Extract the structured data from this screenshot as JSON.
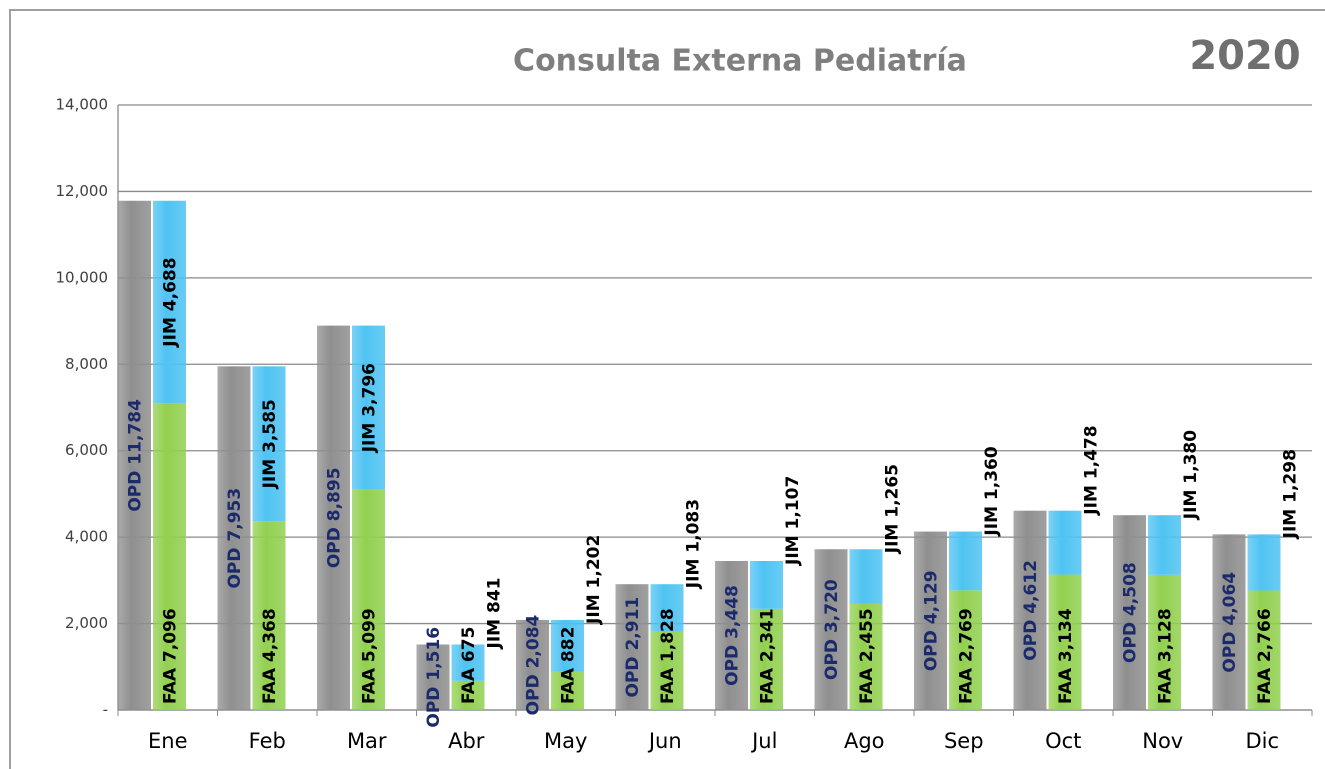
{
  "chart_data": {
    "type": "bar",
    "title": "Consulta Externa Pediatría",
    "subtitle": "2020",
    "categories": [
      "Ene",
      "Feb",
      "Mar",
      "Abr",
      "May",
      "Jun",
      "Jul",
      "Ago",
      "Sep",
      "Oct",
      "Nov",
      "Dic"
    ],
    "series": [
      {
        "name": "OPD",
        "color": "#8f8f8f",
        "label_color": "#1b2a6b",
        "values": [
          11784,
          7953,
          8895,
          1516,
          2084,
          2911,
          3448,
          3720,
          4129,
          4612,
          4508,
          4064
        ],
        "value_labels": [
          "11,784",
          "7,953",
          "8,895",
          "1,516",
          "2,084",
          "2,911",
          "3,448",
          "3,720",
          "4,129",
          "4,612",
          "4,508",
          "4,064"
        ]
      },
      {
        "name": "FAA",
        "color": "#92d050",
        "label_color": "#000000",
        "values": [
          7096,
          4368,
          5099,
          675,
          882,
          1828,
          2341,
          2455,
          2769,
          3134,
          3128,
          2766
        ],
        "value_labels": [
          "7,096",
          "4,368",
          "5,099",
          "675",
          "882",
          "1,828",
          "2,341",
          "2,455",
          "2,769",
          "3,134",
          "3,128",
          "2,766"
        ]
      },
      {
        "name": "JIM",
        "color": "#4fc3f2",
        "label_color": "#000000",
        "values": [
          4688,
          3585,
          3796,
          841,
          1202,
          1083,
          1107,
          1265,
          1360,
          1478,
          1380,
          1298
        ],
        "value_labels": [
          "4,688",
          "3,585",
          "3,796",
          "841",
          "1,202",
          "1,083",
          "1,107",
          "1,265",
          "1,360",
          "1,478",
          "1,380",
          "1,298"
        ]
      }
    ],
    "ylim": [
      0,
      14000
    ],
    "yticks": [
      {
        "value": 0,
        "label": "-"
      },
      {
        "value": 2000,
        "label": "2,000"
      },
      {
        "value": 4000,
        "label": "4,000"
      },
      {
        "value": 6000,
        "label": "6,000"
      },
      {
        "value": 8000,
        "label": "8,000"
      },
      {
        "value": 10000,
        "label": "10,000"
      },
      {
        "value": 12000,
        "label": "12,000"
      },
      {
        "value": 14000,
        "label": "14,000"
      }
    ],
    "grid": true
  }
}
